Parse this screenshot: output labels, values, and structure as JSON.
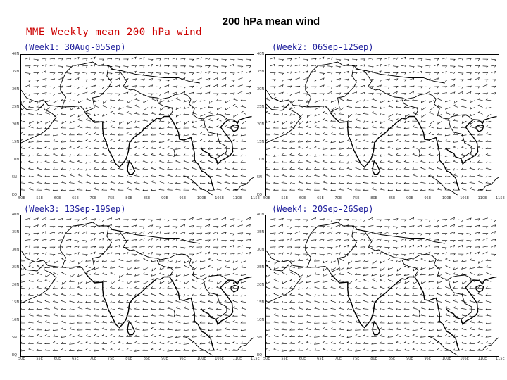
{
  "slide_title": "200 hPa mean wind",
  "figure_title": "MME Weekly mean 200 hPa wind",
  "panels": [
    {
      "label": "(Week1: 30Aug-05Sep)"
    },
    {
      "label": "(Week2: 06Sep-12Sep)"
    },
    {
      "label": "(Week3: 13Sep-19Sep)"
    },
    {
      "label": "(Week4: 20Sep-26Sep)"
    }
  ],
  "map": {
    "lat_labels": [
      "40N",
      "35N",
      "30N",
      "25N",
      "20N",
      "15N",
      "10N",
      "5N",
      "EQ"
    ],
    "lon_labels": [
      "50E",
      "55E",
      "60E",
      "65E",
      "70E",
      "75E",
      "80E",
      "85E",
      "90E",
      "95E",
      "100E",
      "105E",
      "110E",
      "115E"
    ],
    "coastline_color": "#000000",
    "vector_color": "#000000",
    "vector_symbol": "wind-barb"
  }
}
